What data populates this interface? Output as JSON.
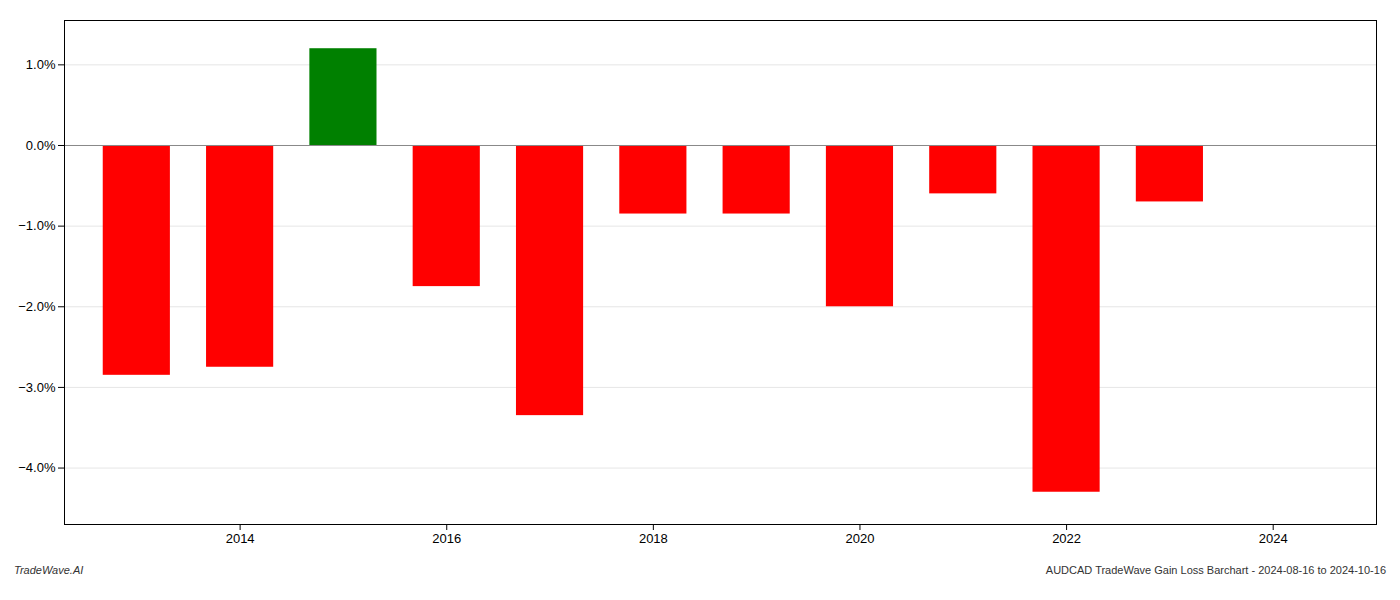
{
  "chart_data": {
    "type": "bar",
    "x": [
      2013,
      2014,
      2015,
      2016,
      2017,
      2018,
      2019,
      2020,
      2021,
      2022,
      2023
    ],
    "values": [
      -2.85,
      -2.75,
      1.2,
      -1.75,
      -3.35,
      -0.85,
      -0.85,
      -2.0,
      -0.6,
      -4.3,
      -0.7
    ],
    "colors": [
      "#ff0000",
      "#ff0000",
      "#008000",
      "#ff0000",
      "#ff0000",
      "#ff0000",
      "#ff0000",
      "#ff0000",
      "#ff0000",
      "#ff0000",
      "#ff0000"
    ],
    "xlim": [
      2012.3,
      2025.0
    ],
    "ylim": [
      -4.7,
      1.55
    ],
    "xticks": [
      2014,
      2016,
      2018,
      2020,
      2022,
      2024
    ],
    "yticks": [
      {
        "value": -4.0,
        "label": "−4.0%"
      },
      {
        "value": -3.0,
        "label": "−3.0%"
      },
      {
        "value": -2.0,
        "label": "−2.0%"
      },
      {
        "value": -1.0,
        "label": "−1.0%"
      },
      {
        "value": 0.0,
        "label": "0.0%"
      },
      {
        "value": 1.0,
        "label": "1.0%"
      }
    ],
    "grid": true,
    "annotations": [
      "TradeWave.AI",
      "AUDCAD TradeWave Gain Loss Barchart - 2024-08-16 to 2024-10-16"
    ]
  }
}
